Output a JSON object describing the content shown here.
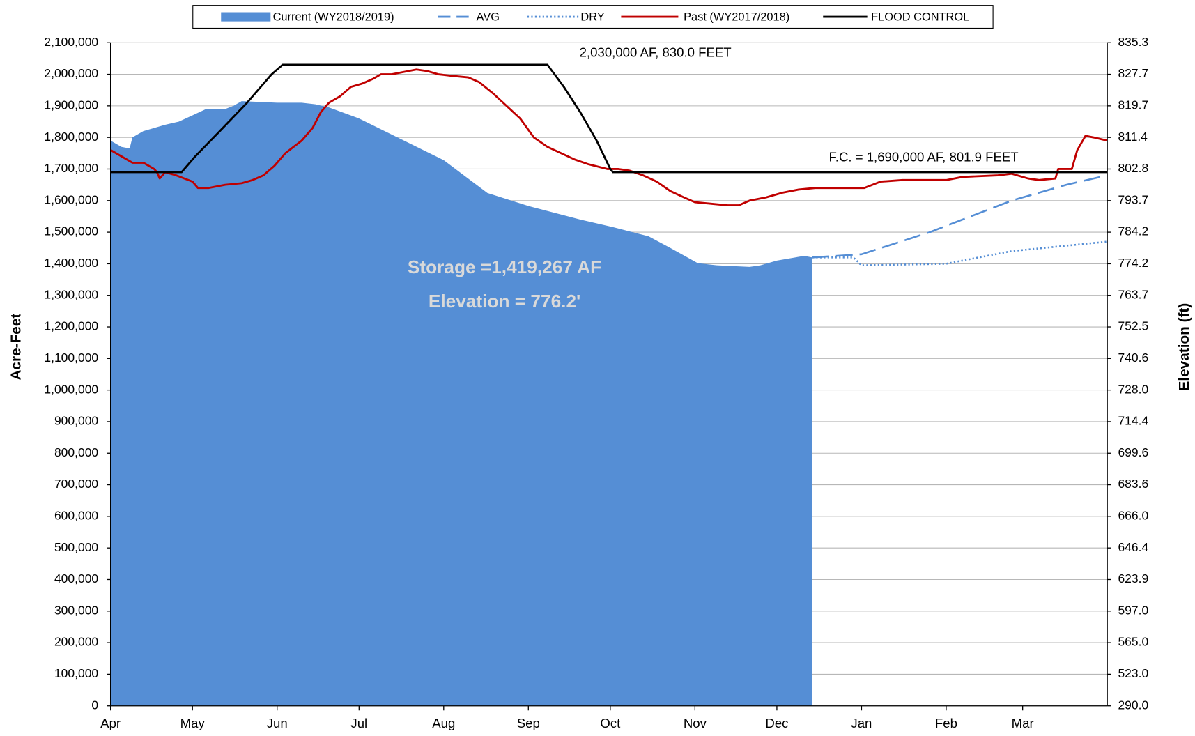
{
  "chart_data": {
    "type": "area-line",
    "y_label": "Acre-Feet",
    "y2_label": "Elevation (ft)",
    "annotations": [
      "2,030,000 AF, 830.0 FEET",
      "F.C. = 1,690,000 AF, 801.9 FEET",
      "Storage =1,419,267 AF",
      "Elevation = 776.2'"
    ],
    "xlim": [
      0,
      365
    ],
    "xticks": [
      {
        "value": 0,
        "label": "Apr"
      },
      {
        "value": 30,
        "label": "May"
      },
      {
        "value": 61,
        "label": "Jun"
      },
      {
        "value": 91,
        "label": "Jul"
      },
      {
        "value": 122,
        "label": "Aug"
      },
      {
        "value": 153,
        "label": "Sep"
      },
      {
        "value": 183,
        "label": "Oct"
      },
      {
        "value": 214,
        "label": "Nov"
      },
      {
        "value": 244,
        "label": "Dec"
      },
      {
        "value": 275,
        "label": "Jan"
      },
      {
        "value": 306,
        "label": "Feb"
      },
      {
        "value": 334,
        "label": "Mar"
      }
    ],
    "ylim": [
      0,
      2100000
    ],
    "yticks": [
      0,
      {
        "value": 100000,
        "label": "100,000"
      },
      {
        "value": 200000,
        "label": "200,000"
      },
      {
        "value": 300000,
        "label": "300,000"
      },
      {
        "value": 400000,
        "label": "400,000"
      },
      {
        "value": 500000,
        "label": "500,000"
      },
      {
        "value": 600000,
        "label": "600,000"
      },
      {
        "value": 700000,
        "label": "700,000"
      },
      {
        "value": 800000,
        "label": "800,000"
      },
      {
        "value": 900000,
        "label": "900,000"
      },
      {
        "value": 1000000,
        "label": "1,000,000"
      },
      {
        "value": 1100000,
        "label": "1,100,000"
      },
      {
        "value": 1200000,
        "label": "1,200,000"
      },
      {
        "value": 1300000,
        "label": "1,300,000"
      },
      {
        "value": 1400000,
        "label": "1,400,000"
      },
      {
        "value": 1500000,
        "label": "1,500,000"
      },
      {
        "value": 1600000,
        "label": "1,600,000"
      },
      {
        "value": 1700000,
        "label": "1,700,000"
      },
      {
        "value": 1800000,
        "label": "1,800,000"
      },
      {
        "value": 1900000,
        "label": "1,900,000"
      },
      {
        "value": 2000000,
        "label": "2,000,000"
      },
      {
        "value": 2100000,
        "label": "2,100,000"
      }
    ],
    "y2ticks": [
      {
        "value": 290,
        "label": "290.0"
      },
      {
        "value": 523,
        "label": "523.0"
      },
      {
        "value": 565,
        "label": "565.0"
      },
      {
        "value": 597,
        "label": "597.0"
      },
      623.9,
      646.4,
      {
        "value": 666,
        "label": "666.0"
      },
      683.6,
      699.6,
      714.4,
      {
        "value": 728,
        "label": "728.0"
      },
      740.6,
      752.5,
      763.7,
      774.2,
      784.2,
      793.7,
      802.8,
      811.4,
      819.7,
      827.7,
      835.3
    ],
    "grid": true,
    "legend": "top",
    "series": [
      {
        "name": "Current (WY2018/2019)",
        "kind": "area",
        "color": "#558ed5",
        "x": [
          0,
          4,
          7,
          8,
          12,
          20,
          25,
          30,
          35,
          42,
          45,
          48,
          61,
          70,
          75,
          80,
          91,
          122,
          138,
          153,
          172,
          184,
          197,
          205,
          215,
          222,
          234,
          238,
          244,
          254,
          257
        ],
        "values": [
          1790000,
          1770000,
          1765000,
          1800000,
          1820000,
          1840000,
          1850000,
          1870000,
          1890000,
          1890000,
          1900000,
          1915000,
          1910000,
          1910000,
          1905000,
          1895000,
          1860000,
          1728000,
          1624000,
          1583000,
          1540000,
          1516000,
          1487000,
          1450000,
          1402000,
          1395000,
          1390000,
          1395000,
          1410000,
          1425000,
          1420000
        ]
      },
      {
        "name": "AVG",
        "kind": "dashed",
        "color": "#558ed5",
        "x": [
          257,
          275,
          300,
          330,
          350,
          365
        ],
        "values": [
          1420000,
          1430000,
          1500000,
          1600000,
          1650000,
          1680000
        ]
      },
      {
        "name": "DRY",
        "kind": "dotted",
        "color": "#558ed5",
        "x": [
          257,
          272,
          275,
          306,
          330,
          365
        ],
        "values": [
          1420000,
          1420000,
          1395000,
          1400000,
          1440000,
          1470000
        ]
      },
      {
        "name": "Past (WY2017/2018)",
        "kind": "solid",
        "color": "#c00000",
        "x": [
          0,
          6,
          8,
          12,
          16,
          17,
          18,
          20,
          24,
          30,
          32,
          36,
          42,
          48,
          52,
          56,
          60,
          64,
          67,
          70,
          74,
          77,
          80,
          84,
          88,
          92,
          96,
          99,
          103,
          106,
          112,
          116,
          120,
          125,
          131,
          135,
          140,
          145,
          150,
          155,
          160,
          165,
          170,
          175,
          182,
          186,
          190,
          195,
          200,
          205,
          210,
          214,
          220,
          226,
          230,
          234,
          240,
          246,
          252,
          258,
          266,
          276,
          282,
          290,
          306,
          312,
          325,
          330,
          336,
          340,
          346,
          347,
          352,
          354,
          357,
          360,
          365
        ],
        "values": [
          1760000,
          1730000,
          1720000,
          1720000,
          1700000,
          1690000,
          1670000,
          1690000,
          1680000,
          1660000,
          1640000,
          1640000,
          1650000,
          1655000,
          1665000,
          1680000,
          1710000,
          1750000,
          1770000,
          1790000,
          1830000,
          1880000,
          1910000,
          1930000,
          1960000,
          1970000,
          1985000,
          2000000,
          2000000,
          2005000,
          2015000,
          2010000,
          2000000,
          1995000,
          1990000,
          1975000,
          1940000,
          1900000,
          1860000,
          1800000,
          1770000,
          1750000,
          1730000,
          1715000,
          1700000,
          1700000,
          1695000,
          1680000,
          1660000,
          1630000,
          1610000,
          1595000,
          1590000,
          1585000,
          1585000,
          1600000,
          1610000,
          1625000,
          1635000,
          1640000,
          1640000,
          1640000,
          1660000,
          1665000,
          1665000,
          1675000,
          1680000,
          1685000,
          1670000,
          1665000,
          1670000,
          1700000,
          1700000,
          1760000,
          1805000,
          1800000,
          1790000
        ]
      },
      {
        "name": "FLOOD CONTROL",
        "kind": "solid",
        "color": "#000000",
        "x": [
          0,
          26,
          31,
          40,
          50,
          56,
          59,
          63,
          160,
          166,
          172,
          178,
          183,
          184,
          365
        ],
        "values": [
          1690000,
          1690000,
          1740000,
          1820000,
          1910000,
          1970000,
          2000000,
          2030000,
          2030000,
          1960000,
          1880000,
          1790000,
          1700000,
          1690000,
          1690000
        ]
      }
    ]
  }
}
